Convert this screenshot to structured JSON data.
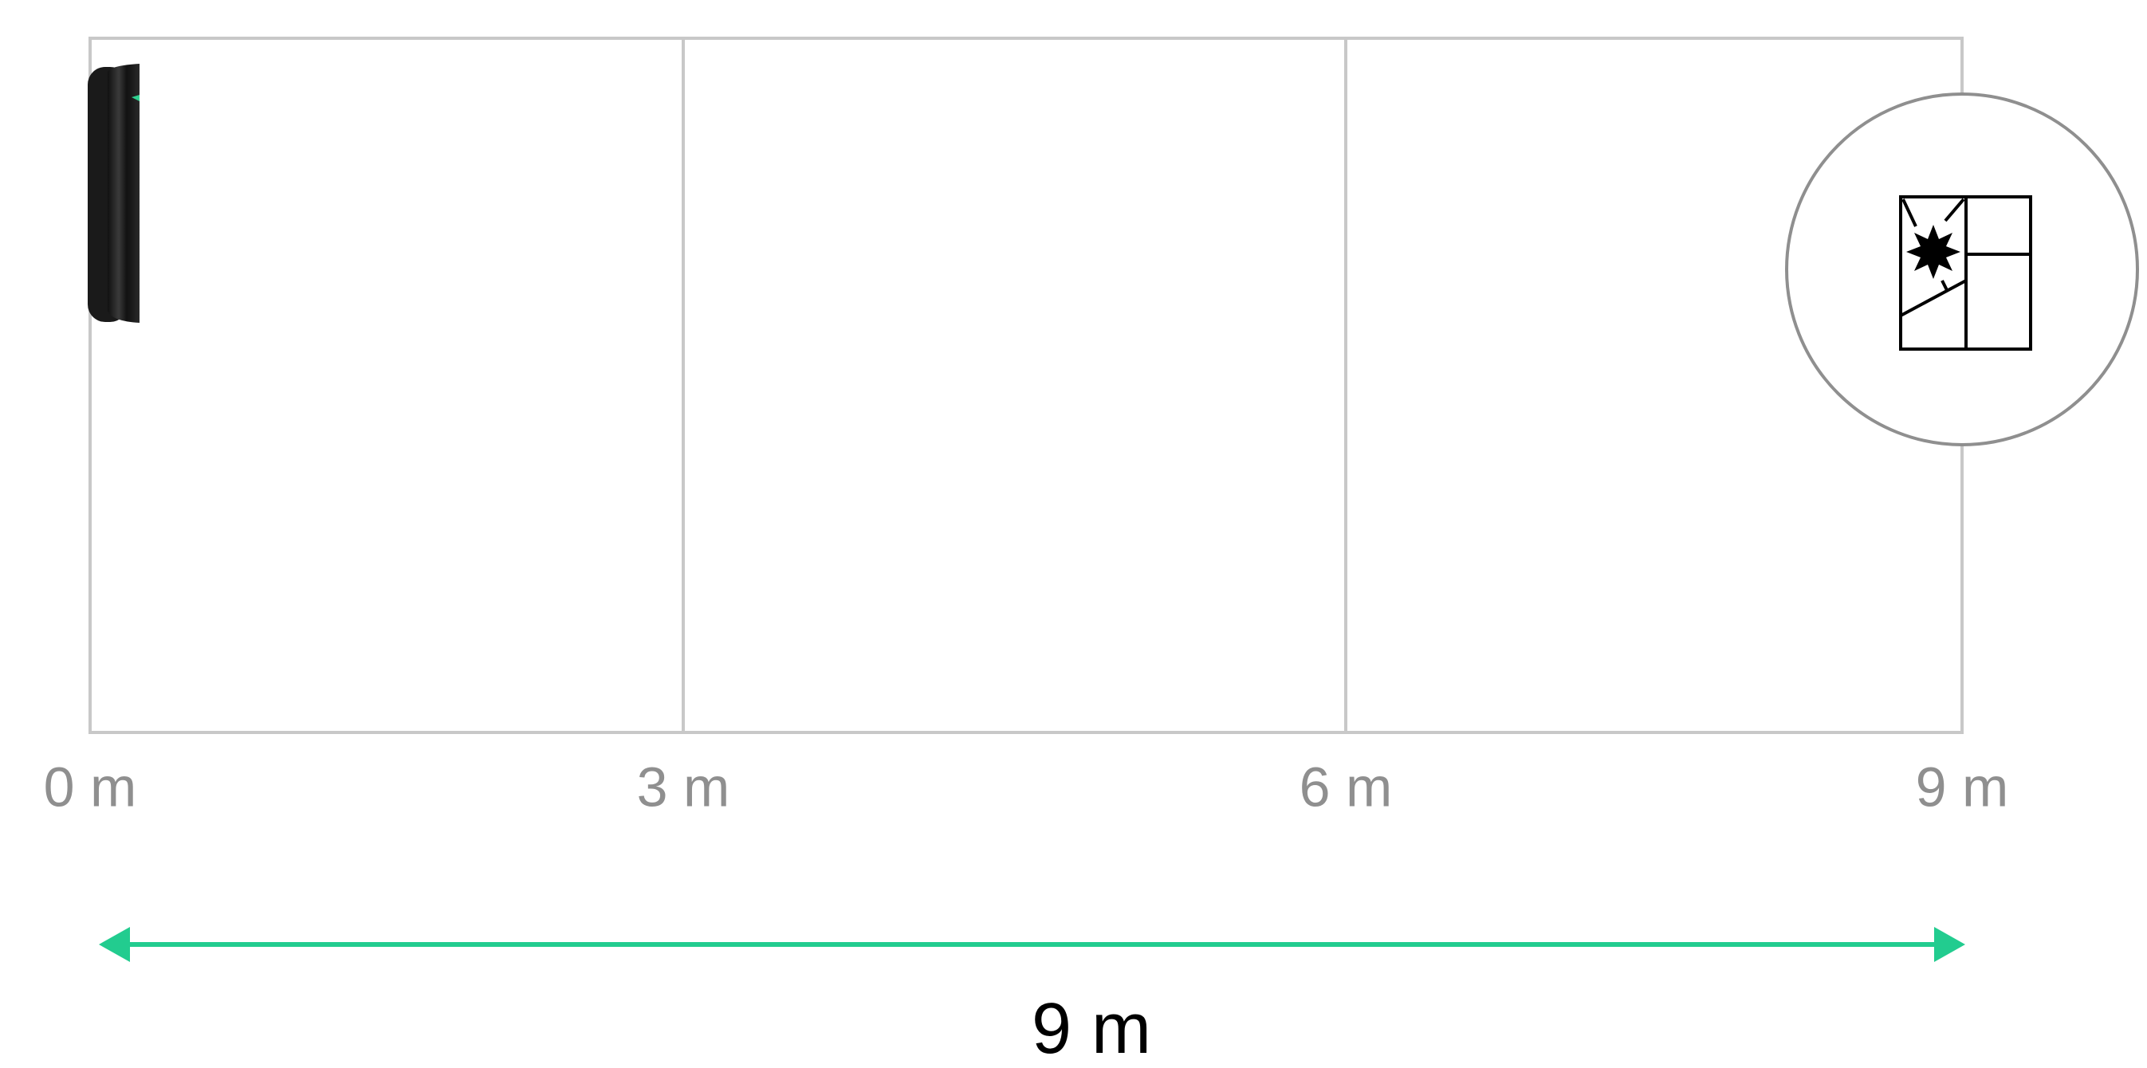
{
  "scale": {
    "labels": [
      "0 m",
      "3 m",
      "6 m",
      "9 m"
    ]
  },
  "dimension": {
    "label": "9 m"
  }
}
